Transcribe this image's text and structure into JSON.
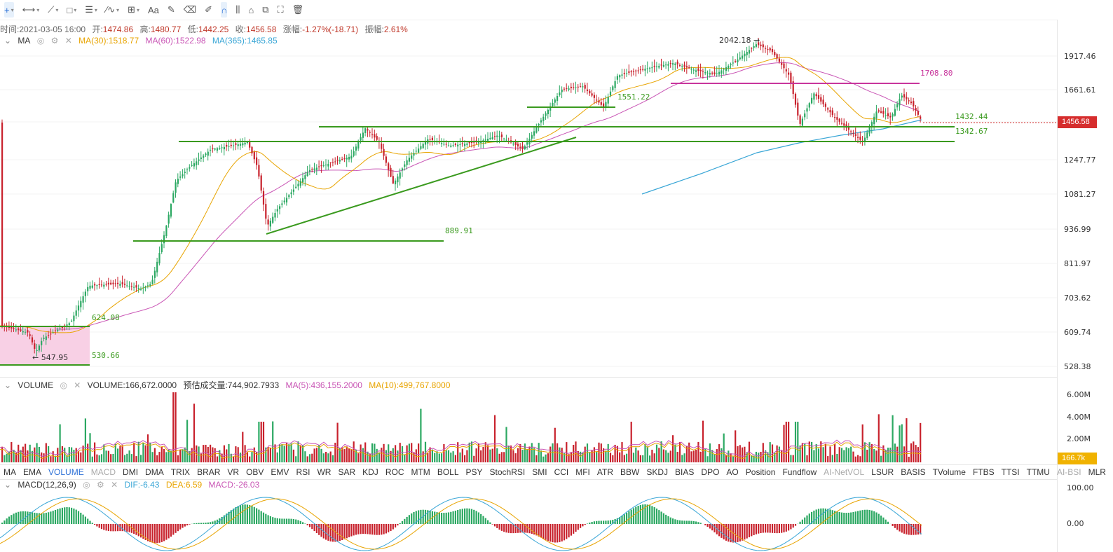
{
  "toolbar": {
    "tools": [
      {
        "icon": "crosshair-icon",
        "glyph": "+",
        "active": true,
        "caret": true
      },
      {
        "icon": "horizontal-line-icon",
        "glyph": "⟷",
        "caret": true
      },
      {
        "icon": "trend-line-icon",
        "glyph": "⟋",
        "caret": true
      },
      {
        "icon": "rectangle-icon",
        "glyph": "□",
        "caret": true
      },
      {
        "icon": "fib-lines-icon",
        "glyph": "☰",
        "caret": true
      },
      {
        "icon": "wave-icon",
        "glyph": "⁄∿",
        "caret": true
      },
      {
        "icon": "measure-icon",
        "glyph": "⊞",
        "caret": true
      },
      {
        "icon": "text-icon",
        "glyph": "Aa"
      },
      {
        "icon": "brush-icon",
        "glyph": "✎"
      },
      {
        "icon": "eraser-icon",
        "glyph": "⌫"
      },
      {
        "icon": "pencil-icon",
        "glyph": "✐"
      },
      {
        "icon": "magnet-icon",
        "glyph": "∩",
        "active": true
      },
      {
        "icon": "bars-icon",
        "glyph": "⫼"
      },
      {
        "icon": "lock-icon",
        "glyph": "⌂"
      },
      {
        "icon": "copy-icon",
        "glyph": "⧉"
      },
      {
        "icon": "screenshot-icon",
        "glyph": "⛶"
      },
      {
        "icon": "trash-icon",
        "glyph": "🗑"
      }
    ]
  },
  "ohlc": {
    "time_label": "时间:",
    "time": "2021-03-05 16:00",
    "open_label": "开:",
    "open": "1474.86",
    "high_label": "高:",
    "high": "1480.77",
    "low_label": "低:",
    "low": "1442.25",
    "close_label": "收:",
    "close": "1456.58",
    "change_label": "涨幅:",
    "change": "-1.27%(-18.71)",
    "amp_label": "振幅:",
    "amp": "2.61%"
  },
  "ma_legend": {
    "name": "MA",
    "ma30": "MA(30):1518.77",
    "ma60": "MA(60):1522.98",
    "ma365": "MA(365):1465.85",
    "ma30_color": "#e8a400",
    "ma60_color": "#c955b5",
    "ma365_color": "#39a6d6"
  },
  "price_axis": [
    "1917.46",
    "1661.61",
    "1456.58",
    "1247.77",
    "1081.27",
    "936.99",
    "811.97",
    "703.62",
    "609.74",
    "528.38"
  ],
  "current_price": "1456.58",
  "annotations": {
    "a2042": "2042.18 →",
    "a1708": "1708.80",
    "a1551": "1551.22",
    "a1432": "1432.44",
    "a1342": "1342.67",
    "a889": "889.91",
    "a624": "624.08",
    "a530": "530.66",
    "a547": "← 547.95"
  },
  "volume_legend": {
    "name": "VOLUME",
    "volume": "VOLUME:166,672.0000",
    "est": "预估成交量:744,902.7933",
    "ma5": "MA(5):436,155.2000",
    "ma10": "MA(10):499,767.8000"
  },
  "volume_axis": [
    "6.00M",
    "4.00M",
    "2.00M"
  ],
  "volume_current": "166.7k",
  "indicators": [
    "MA",
    "EMA",
    "VOLUME",
    "MACD",
    "DMI",
    "DMA",
    "TRIX",
    "BRAR",
    "VR",
    "OBV",
    "EMV",
    "RSI",
    "WR",
    "SAR",
    "KDJ",
    "ROC",
    "MTM",
    "BOLL",
    "PSY",
    "StochRSI",
    "SMI",
    "CCI",
    "MFI",
    "ATR",
    "BBW",
    "SKDJ",
    "BIAS",
    "DPO",
    "AO",
    "Position",
    "Fundflow",
    "AI-NetVOL",
    "LSUR",
    "BASIS",
    "TVolume",
    "FTBS",
    "TTSI",
    "TTMU",
    "AI-BSI",
    "MLR"
  ],
  "indicator_active": "VOLUME",
  "indicator_disabled": [
    "MACD",
    "AI-NetVOL",
    "AI-BSI"
  ],
  "macd_legend": {
    "name": "MACD(12,26,9)",
    "dif": "DIF:-6.43",
    "dea": "DEA:6.59",
    "macd": "MACD:-26.03"
  },
  "macd_axis": [
    "100.00",
    "0.00"
  ],
  "colors": {
    "up": "#2ba862",
    "down": "#c8212c",
    "line_green": "#3a9a1e",
    "line_magenta": "#c8359c",
    "blue": "#2b6fd6"
  }
}
